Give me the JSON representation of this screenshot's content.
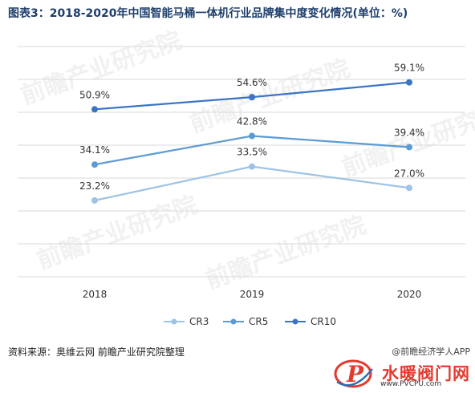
{
  "title": "图表3：2018-2020年中国智能马桶一体机行业品牌集中度变化情况(单位：%)",
  "source": "资料来源：奥维云网 前瞻产业研究院整理",
  "brand": "@前瞻经济学人APP",
  "watermark": "前瞻产业研究院",
  "logo": {
    "text": "水暖阀门网",
    "url": "www.PVCPU.com",
    "color": "#e23b2e"
  },
  "chart_data": {
    "type": "line",
    "categories": [
      "2018",
      "2019",
      "2020"
    ],
    "series": [
      {
        "name": "CR3",
        "values": [
          23.2,
          33.5,
          27.0
        ],
        "labels": [
          "23.2%",
          "33.5%",
          "27.0%"
        ],
        "color": "#9dc3e6"
      },
      {
        "name": "CR5",
        "values": [
          34.1,
          42.8,
          39.4
        ],
        "labels": [
          "34.1%",
          "42.8%",
          "39.4%"
        ],
        "color": "#5b9bd5"
      },
      {
        "name": "CR10",
        "values": [
          50.9,
          54.6,
          59.1
        ],
        "labels": [
          "50.9%",
          "54.6%",
          "59.1%"
        ],
        "color": "#3a75c4"
      }
    ],
    "ylim": [
      0,
      70
    ],
    "grid": true,
    "legend": "bottom"
  }
}
